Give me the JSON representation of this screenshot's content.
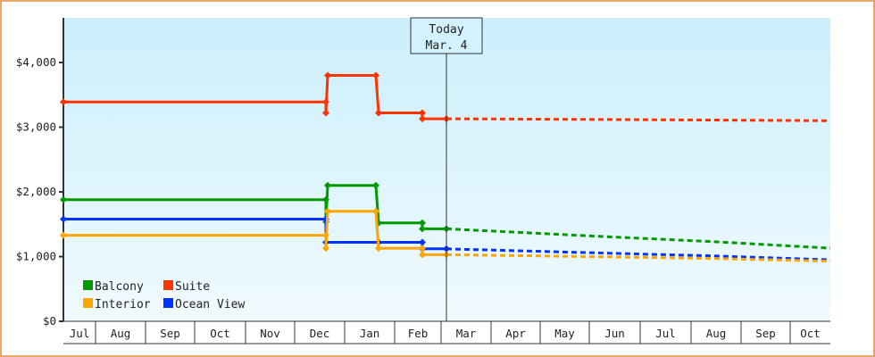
{
  "chart_data": {
    "type": "line",
    "title": "",
    "xlabel": "",
    "ylabel": "",
    "ylim": [
      0,
      4700
    ],
    "yticks": [
      "$0",
      "$1,000",
      "$2,000",
      "$3,000",
      "$4,000"
    ],
    "categories": [
      "Jul",
      "Aug",
      "Sep",
      "Oct",
      "Nov",
      "Dec",
      "Jan",
      "Feb",
      "Mar",
      "Apr",
      "May",
      "Jun",
      "Jul",
      "Aug",
      "Sep",
      "Oct"
    ],
    "legend": {
      "position": "lower-left",
      "entries": [
        "Balcony",
        "Suite",
        "Interior",
        "Ocean View"
      ]
    },
    "today_marker": {
      "line1": "Today",
      "line2": "Mar. 4"
    },
    "grid": false,
    "series": [
      {
        "name": "Suite",
        "color": "#ff3300",
        "history": [
          [
            "Jul 1",
            3390
          ],
          [
            "Dec 7",
            3390
          ],
          [
            "Dec 7",
            3220
          ],
          [
            "Dec 8",
            3800
          ],
          [
            "Jan 5",
            3800
          ],
          [
            "Jan 6",
            3220
          ],
          [
            "Feb 3",
            3220
          ],
          [
            "Feb 3",
            3130
          ],
          [
            "Mar 4",
            3130
          ]
        ],
        "forecast": [
          [
            "Mar 4",
            3130
          ],
          [
            "May 1",
            3120
          ],
          [
            "Aug 15",
            3110
          ],
          [
            "Oct 31",
            3100
          ]
        ]
      },
      {
        "name": "Balcony",
        "color": "#009900",
        "history": [
          [
            "Jul 1",
            1880
          ],
          [
            "Dec 7",
            1880
          ],
          [
            "Dec 7",
            1540
          ],
          [
            "Dec 8",
            2100
          ],
          [
            "Jan 5",
            2100
          ],
          [
            "Jan 6",
            1520
          ],
          [
            "Feb 3",
            1520
          ],
          [
            "Feb 3",
            1430
          ],
          [
            "Mar 4",
            1430
          ]
        ],
        "forecast": [
          [
            "Mar 4",
            1430
          ],
          [
            "Jun 1",
            1320
          ],
          [
            "Aug 15",
            1230
          ],
          [
            "Oct 31",
            1130
          ]
        ]
      },
      {
        "name": "Ocean View",
        "color": "#0033ff",
        "history": [
          [
            "Jul 1",
            1580
          ],
          [
            "Dec 7",
            1580
          ],
          [
            "Dec 7",
            1220
          ],
          [
            "Jan 6",
            1220
          ],
          [
            "Feb 3",
            1220
          ],
          [
            "Feb 3",
            1120
          ],
          [
            "Mar 4",
            1120
          ]
        ],
        "forecast": [
          [
            "Mar 4",
            1120
          ],
          [
            "Jun 1",
            1060
          ],
          [
            "Aug 15",
            1010
          ],
          [
            "Oct 31",
            950
          ]
        ]
      },
      {
        "name": "Interior",
        "color": "#ffa500",
        "history": [
          [
            "Jul 1",
            1330
          ],
          [
            "Dec 7",
            1330
          ],
          [
            "Dec 7",
            1130
          ],
          [
            "Dec 8",
            1700
          ],
          [
            "Jan 5",
            1700
          ],
          [
            "Jan 6",
            1130
          ],
          [
            "Feb 3",
            1130
          ],
          [
            "Feb 3",
            1030
          ],
          [
            "Mar 4",
            1030
          ]
        ],
        "forecast": [
          [
            "Mar 4",
            1030
          ],
          [
            "Jun 1",
            1000
          ],
          [
            "Aug 15",
            970
          ],
          [
            "Oct 31",
            930
          ]
        ]
      }
    ]
  }
}
